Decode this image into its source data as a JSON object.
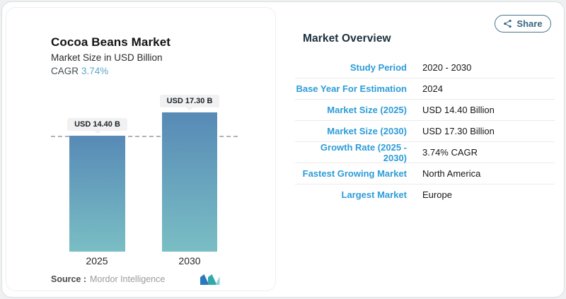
{
  "share_button": {
    "label": "Share"
  },
  "chart_panel": {
    "title": "Cocoa Beans Market",
    "subtitle": "Market Size in USD Billion",
    "cagr_label": "CAGR",
    "cagr_value": "3.74%",
    "source_label": "Source :",
    "source_name": "Mordor Intelligence"
  },
  "chart_data": {
    "type": "bar",
    "title": "Cocoa Beans Market",
    "ylabel": "Market Size (USD Billion)",
    "categories": [
      "2025",
      "2030"
    ],
    "values": [
      14.4,
      17.3
    ],
    "bar_labels": [
      "USD 14.40 B",
      "USD 17.30 B"
    ],
    "cagr_percent": 3.74,
    "reference_line_value": 14.4,
    "bar_gradient_top": "#578ab6",
    "bar_gradient_bottom": "#7abec4",
    "grid": "off",
    "legend": "none"
  },
  "overview": {
    "heading": "Market Overview",
    "rows": [
      {
        "label": "Study Period",
        "value": "2020 - 2030"
      },
      {
        "label": "Base Year For Estimation",
        "value": "2024"
      },
      {
        "label": "Market Size (2025)",
        "value": "USD 14.40 Billion"
      },
      {
        "label": "Market Size (2030)",
        "value": "USD 17.30 Billion"
      },
      {
        "label": "Growth Rate (2025 - 2030)",
        "value": "3.74% CAGR"
      },
      {
        "label": "Fastest Growing Market",
        "value": "North America"
      },
      {
        "label": "Largest Market",
        "value": "Europe"
      }
    ]
  },
  "colors": {
    "accent_label_blue": "#2d9cd8",
    "cagr_teal": "#5fa7c9",
    "share_outline": "#4a768e",
    "heading_navy": "#1b2f3c",
    "logo_blue": "#2a79bd",
    "logo_teal": "#31a8ab"
  }
}
